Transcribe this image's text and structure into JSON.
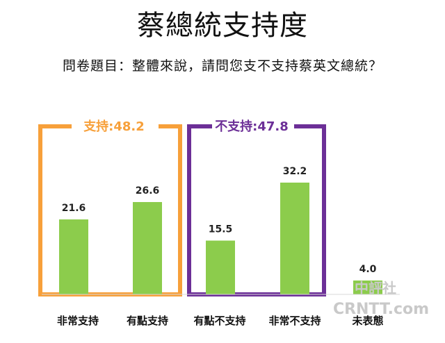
{
  "title": "蔡總統支持度",
  "question": "問卷題目：整體來說，請問您支不支持蔡英文總統？",
  "watermark": "中評社",
  "watermark_url": "CRNTT.com",
  "colors": {
    "bar": "#8ccc4c",
    "support_group": "#f7a03a",
    "nonsupport_group": "#6c2f97"
  },
  "chart_data": {
    "type": "bar",
    "title": "蔡總統支持度",
    "categories": [
      "非常支持",
      "有點支持",
      "有點不支持",
      "非常不支持",
      "未表態"
    ],
    "values": [
      21.6,
      26.6,
      15.5,
      32.2,
      4.0
    ],
    "value_labels": [
      "21.6",
      "26.6",
      "15.5",
      "32.2",
      "4.0"
    ],
    "groups": [
      {
        "label": "支持:48.2",
        "value": 48.2,
        "members": [
          "非常支持",
          "有點支持"
        ]
      },
      {
        "label": "不支持:47.8",
        "value": 47.8,
        "members": [
          "有點不支持",
          "非常不支持"
        ]
      }
    ],
    "ylim": [
      0,
      40
    ],
    "grid": false,
    "legend": "none"
  }
}
